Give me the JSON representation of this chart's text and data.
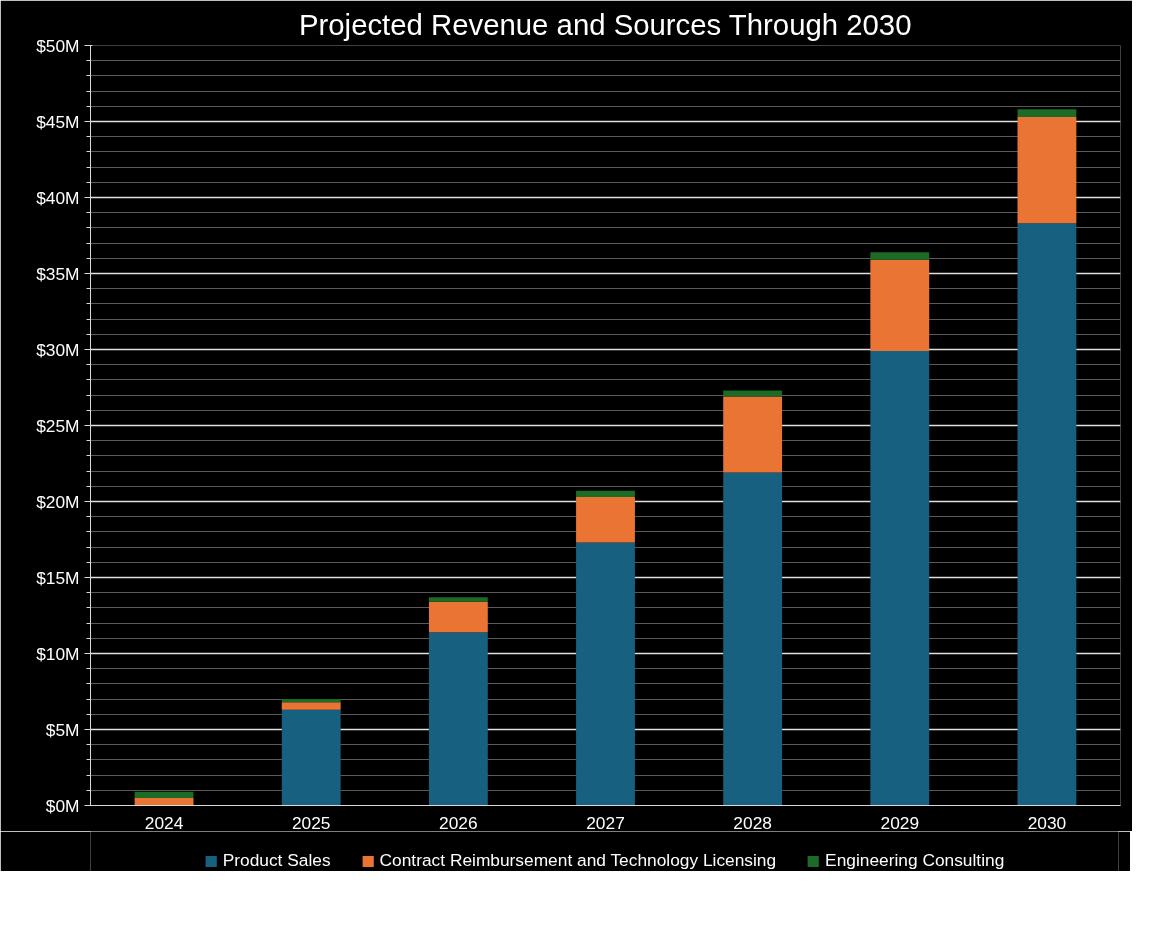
{
  "chart_data": {
    "type": "bar",
    "title": "Projected Revenue and Sources Through 2030",
    "categories": [
      "2024",
      "2025",
      "2026",
      "2027",
      "2028",
      "2029",
      "2030"
    ],
    "stacked": true,
    "series": [
      {
        "name": "Product Sales",
        "color": "#17607f",
        "values": [
          0,
          6.3,
          11.4,
          17.3,
          21.9,
          29.9,
          38.3
        ]
      },
      {
        "name": "Contract Reimbursement and Technology Licensing",
        "color": "#e97434",
        "values": [
          0.5,
          0.5,
          2.0,
          3.0,
          5.0,
          6.0,
          7.0
        ]
      },
      {
        "name": "Engineering Consulting",
        "color": "#1c6b26",
        "values": [
          0.4,
          0.2,
          0.3,
          0.4,
          0.4,
          0.5,
          0.5
        ]
      }
    ],
    "ylim": [
      0,
      50
    ],
    "yticks": [
      {
        "value": 0,
        "label": "$0M"
      },
      {
        "value": 5,
        "label": "$5M"
      },
      {
        "value": 10,
        "label": "$10M"
      },
      {
        "value": 15,
        "label": "$15M"
      },
      {
        "value": 20,
        "label": "$20M"
      },
      {
        "value": 25,
        "label": "$25M"
      },
      {
        "value": 30,
        "label": "$30M"
      },
      {
        "value": 35,
        "label": "$35M"
      },
      {
        "value": 40,
        "label": "$40M"
      },
      {
        "value": 45,
        "label": "$45M"
      },
      {
        "value": 50,
        "label": "$50M"
      }
    ],
    "grid": "y",
    "legend": "bottom"
  }
}
